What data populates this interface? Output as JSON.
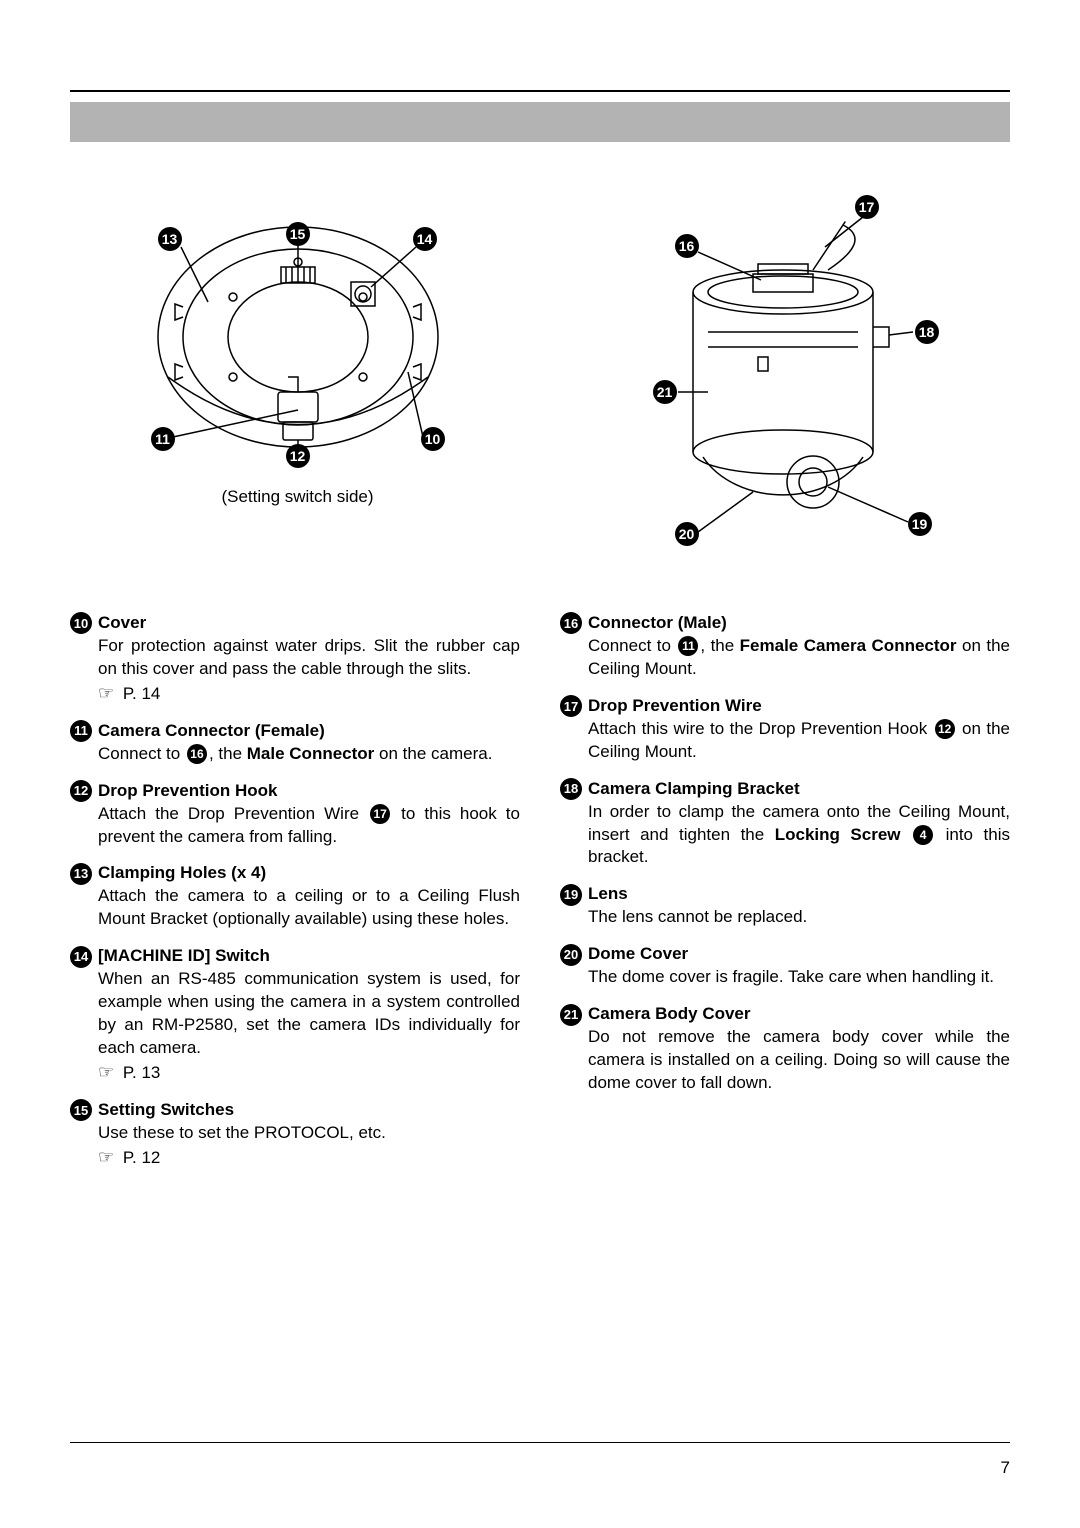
{
  "page": {
    "number": "7"
  },
  "figures": {
    "left": {
      "caption": "(Setting switch side)",
      "callouts": {
        "a": "13",
        "b": "15",
        "c": "14",
        "d": "11",
        "e": "12",
        "f": "10"
      }
    },
    "right": {
      "callouts": {
        "a": "16",
        "b": "17",
        "c": "18",
        "d": "21",
        "e": "20",
        "f": "19"
      }
    }
  },
  "left_items": [
    {
      "num": "10",
      "title": "Cover",
      "body": "For protection against water drips. Slit the rubber cap on this cover and pass the cable through the slits.",
      "ref": "P. 14"
    },
    {
      "num": "11",
      "title": "Camera Connector (Female)",
      "body_pre": "Connect to ",
      "inline_ref": "16",
      "body_post": ", the <b>Male Connector</b> on the camera."
    },
    {
      "num": "12",
      "title": "Drop Prevention Hook",
      "body_pre": "Attach the Drop Prevention Wire ",
      "inline_ref": "17",
      "body_post": " to this hook to prevent the camera from falling."
    },
    {
      "num": "13",
      "title": "Clamping Holes (x 4)",
      "body": "Attach the camera to a ceiling or to a Ceiling Flush Mount Bracket (optionally available) using these holes."
    },
    {
      "num": "14",
      "title": "[MACHINE ID] Switch",
      "body": "When an RS-485 communication system is used, for example when using the camera in a system controlled by an RM-P2580, set the camera IDs individually for each camera.",
      "ref": "P. 13"
    },
    {
      "num": "15",
      "title": "Setting Switches",
      "body": "Use these to set the PROTOCOL, etc.",
      "ref": "P. 12"
    }
  ],
  "right_items": [
    {
      "num": "16",
      "title": "Connector (Male)",
      "body_pre": "Connect to ",
      "inline_ref": "11",
      "body_post": ", the <b>Female Camera Connector</b> on the Ceiling Mount."
    },
    {
      "num": "17",
      "title": "Drop Prevention Wire",
      "body_pre": "Attach this wire to the Drop Prevention Hook ",
      "inline_ref": "12",
      "body_post": " on the Ceiling Mount."
    },
    {
      "num": "18",
      "title": "Camera Clamping Bracket",
      "body_pre": "In order to clamp the camera onto the Ceiling Mount, insert and tighten the <b>Locking Screw</b>  ",
      "inline_ref": "4",
      "body_post": " into this bracket."
    },
    {
      "num": "19",
      "title": "Lens",
      "body": "The lens cannot be replaced."
    },
    {
      "num": "20",
      "title": "Dome Cover",
      "body": "The dome cover is fragile. Take care when handling it."
    },
    {
      "num": "21",
      "title": "Camera Body Cover",
      "body": "Do not remove the camera body cover while the camera is installed on a ceiling. Doing so will cause the dome cover to fall down."
    }
  ]
}
